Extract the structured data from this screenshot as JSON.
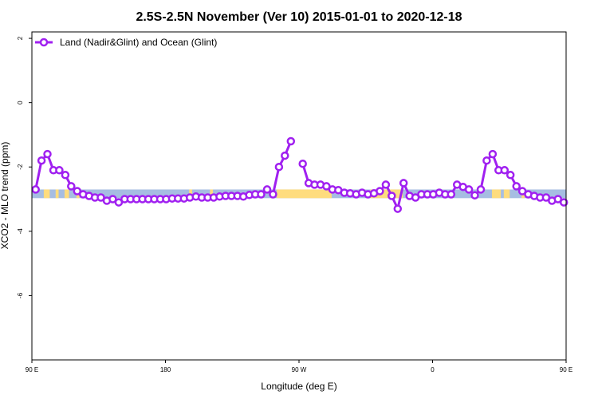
{
  "chart_data": {
    "type": "line",
    "title": "2.5S-2.5N November (Ver 10)   2015-01-01 to 2020-12-18",
    "xlabel": "Longitude (deg E)",
    "ylabel": "XCO2 - MLO trend (ppm)",
    "xlim": [
      90,
      450
    ],
    "ylim": [
      -8,
      2.2
    ],
    "x_ticks": [
      {
        "value": 90,
        "label": "90 E"
      },
      {
        "value": 180,
        "label": "180"
      },
      {
        "value": 270,
        "label": "90 W"
      },
      {
        "value": 360,
        "label": "0"
      },
      {
        "value": 450,
        "label": "90 E"
      },
      {
        "value": 540,
        "label": "180"
      }
    ],
    "y_ticks": [
      {
        "value": 2,
        "label": "2"
      },
      {
        "value": 0,
        "label": "0"
      },
      {
        "value": -2,
        "label": "-2"
      },
      {
        "value": -4,
        "label": "-4"
      },
      {
        "value": -6,
        "label": "-6"
      }
    ],
    "grid": false,
    "legend_position": "top-left",
    "series": [
      {
        "name": "Land (Nadir&Glint) and Ocean (Glint)",
        "color": "#a020f0",
        "points": [
          [
            92.5,
            -2.7
          ],
          [
            96.5,
            -1.8
          ],
          [
            100.5,
            -1.6
          ],
          [
            104.5,
            -2.1
          ],
          [
            108.5,
            -2.1
          ],
          [
            112.5,
            -2.25
          ],
          [
            116.5,
            -2.6
          ],
          [
            120.5,
            -2.75
          ],
          [
            124.5,
            -2.85
          ],
          [
            128.5,
            -2.9
          ],
          [
            132.5,
            -2.95
          ],
          [
            136.5,
            -2.95
          ],
          [
            140.5,
            -3.05
          ],
          [
            144.5,
            -3.0
          ],
          [
            148.5,
            -3.1
          ],
          [
            152.5,
            -3.0
          ],
          [
            156.5,
            -3.0
          ],
          [
            160.5,
            -3.0
          ],
          [
            164.5,
            -3.0
          ],
          [
            168.5,
            -3.0
          ],
          [
            172.5,
            -3.0
          ],
          [
            176.5,
            -3.0
          ],
          [
            180.5,
            -3.0
          ],
          [
            184.5,
            -2.98
          ],
          [
            188.5,
            -2.98
          ],
          [
            192.5,
            -2.98
          ],
          [
            196.5,
            -2.95
          ],
          [
            200.5,
            -2.92
          ],
          [
            204.5,
            -2.95
          ],
          [
            208.5,
            -2.95
          ],
          [
            212.5,
            -2.95
          ],
          [
            216.5,
            -2.92
          ],
          [
            220.5,
            -2.9
          ],
          [
            224.5,
            -2.9
          ],
          [
            228.5,
            -2.9
          ],
          [
            232.5,
            -2.92
          ],
          [
            236.5,
            -2.87
          ],
          [
            240.5,
            -2.85
          ],
          [
            244.5,
            -2.85
          ],
          [
            248.5,
            -2.7
          ],
          [
            252.5,
            -2.85
          ],
          [
            256.5,
            -2.0
          ],
          [
            260.5,
            -1.65
          ],
          [
            264.5,
            -1.2
          ],
          [
            null,
            null
          ],
          [
            272.5,
            -1.9
          ],
          [
            276.5,
            -2.5
          ],
          [
            280.5,
            -2.55
          ],
          [
            284.5,
            -2.55
          ],
          [
            288.5,
            -2.6
          ],
          [
            292.5,
            -2.7
          ],
          [
            296.5,
            -2.72
          ],
          [
            300.5,
            -2.8
          ],
          [
            304.5,
            -2.82
          ],
          [
            308.5,
            -2.85
          ],
          [
            312.5,
            -2.8
          ],
          [
            316.5,
            -2.85
          ],
          [
            320.5,
            -2.82
          ],
          [
            324.5,
            -2.75
          ],
          [
            328.5,
            -2.55
          ],
          [
            332.5,
            -2.9
          ],
          [
            336.5,
            -3.3
          ],
          [
            340.5,
            -2.5
          ],
          [
            344.5,
            -2.9
          ],
          [
            348.5,
            -2.95
          ],
          [
            352.5,
            -2.85
          ],
          [
            356.5,
            -2.85
          ],
          [
            360.5,
            -2.85
          ],
          [
            364.5,
            -2.8
          ],
          [
            368.5,
            -2.85
          ],
          [
            372.5,
            -2.85
          ],
          [
            376.5,
            -2.55
          ],
          [
            380.5,
            -2.62
          ],
          [
            384.5,
            -2.7
          ],
          [
            388.5,
            -2.88
          ],
          [
            392.5,
            -2.7
          ],
          [
            396.5,
            -1.8
          ],
          [
            400.5,
            -1.6
          ],
          [
            404.5,
            -2.1
          ],
          [
            408.5,
            -2.1
          ],
          [
            412.5,
            -2.25
          ],
          [
            416.5,
            -2.6
          ],
          [
            420.5,
            -2.75
          ],
          [
            424.5,
            -2.85
          ],
          [
            428.5,
            -2.9
          ],
          [
            432.5,
            -2.95
          ],
          [
            436.5,
            -2.95
          ],
          [
            440.5,
            -3.05
          ],
          [
            444.5,
            -3.0
          ],
          [
            448.5,
            -3.1
          ],
          [
            452.5,
            -3.0
          ],
          [
            456.5,
            -3.0
          ],
          [
            460.5,
            -3.0
          ]
        ]
      }
    ],
    "surface_band": {
      "y_range": [
        -2.97,
        -2.7
      ],
      "ocean_color": "#a6bde2",
      "land_color": "#fedc7e",
      "land_ranges": [
        [
          98,
          102
        ],
        [
          106,
          108
        ],
        [
          112,
          115
        ],
        [
          120,
          122
        ],
        [
          196,
          198
        ],
        [
          210,
          212
        ],
        [
          255,
          292
        ],
        [
          318,
          340
        ],
        [
          400,
          406
        ],
        [
          408,
          412
        ],
        [
          420,
          422
        ]
      ]
    }
  }
}
